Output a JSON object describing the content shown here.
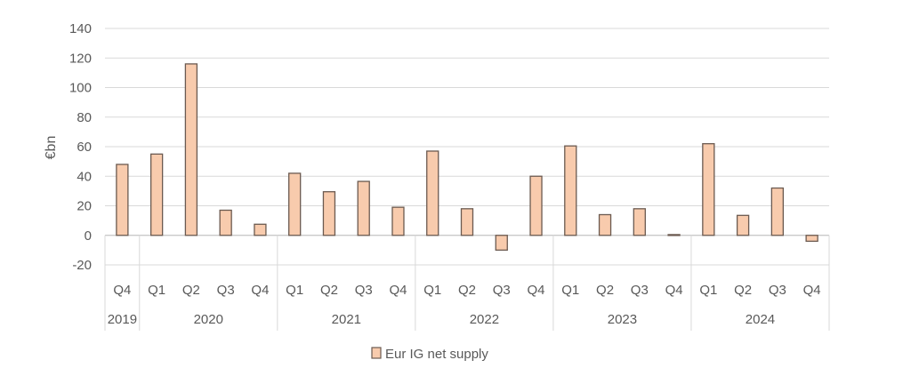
{
  "chart_data": {
    "type": "bar",
    "ylabel": "€bn",
    "ylim": [
      -20,
      140
    ],
    "yticks": [
      140,
      120,
      100,
      80,
      60,
      40,
      20,
      0,
      -20
    ],
    "grid": true,
    "legend_position": "bottom",
    "categories": [
      "Q4",
      "Q1",
      "Q2",
      "Q3",
      "Q4",
      "Q1",
      "Q2",
      "Q3",
      "Q4",
      "Q1",
      "Q2",
      "Q3",
      "Q4",
      "Q1",
      "Q2",
      "Q3",
      "Q4",
      "Q1",
      "Q2",
      "Q3",
      "Q4"
    ],
    "year_groups": [
      {
        "label": "2019",
        "count": 1
      },
      {
        "label": "2020",
        "count": 4
      },
      {
        "label": "2021",
        "count": 4
      },
      {
        "label": "2022",
        "count": 4
      },
      {
        "label": "2023",
        "count": 4
      },
      {
        "label": "2024",
        "count": 4
      }
    ],
    "series": [
      {
        "name": "Eur IG net supply",
        "color": "#F8CBAD",
        "edge_color": "#6b5a50",
        "values": [
          48,
          55,
          116,
          17,
          7.5,
          42,
          29.5,
          36.5,
          19,
          57,
          18,
          -10,
          40,
          60.5,
          14,
          18,
          0.5,
          62,
          13.5,
          32,
          -4
        ]
      }
    ]
  }
}
